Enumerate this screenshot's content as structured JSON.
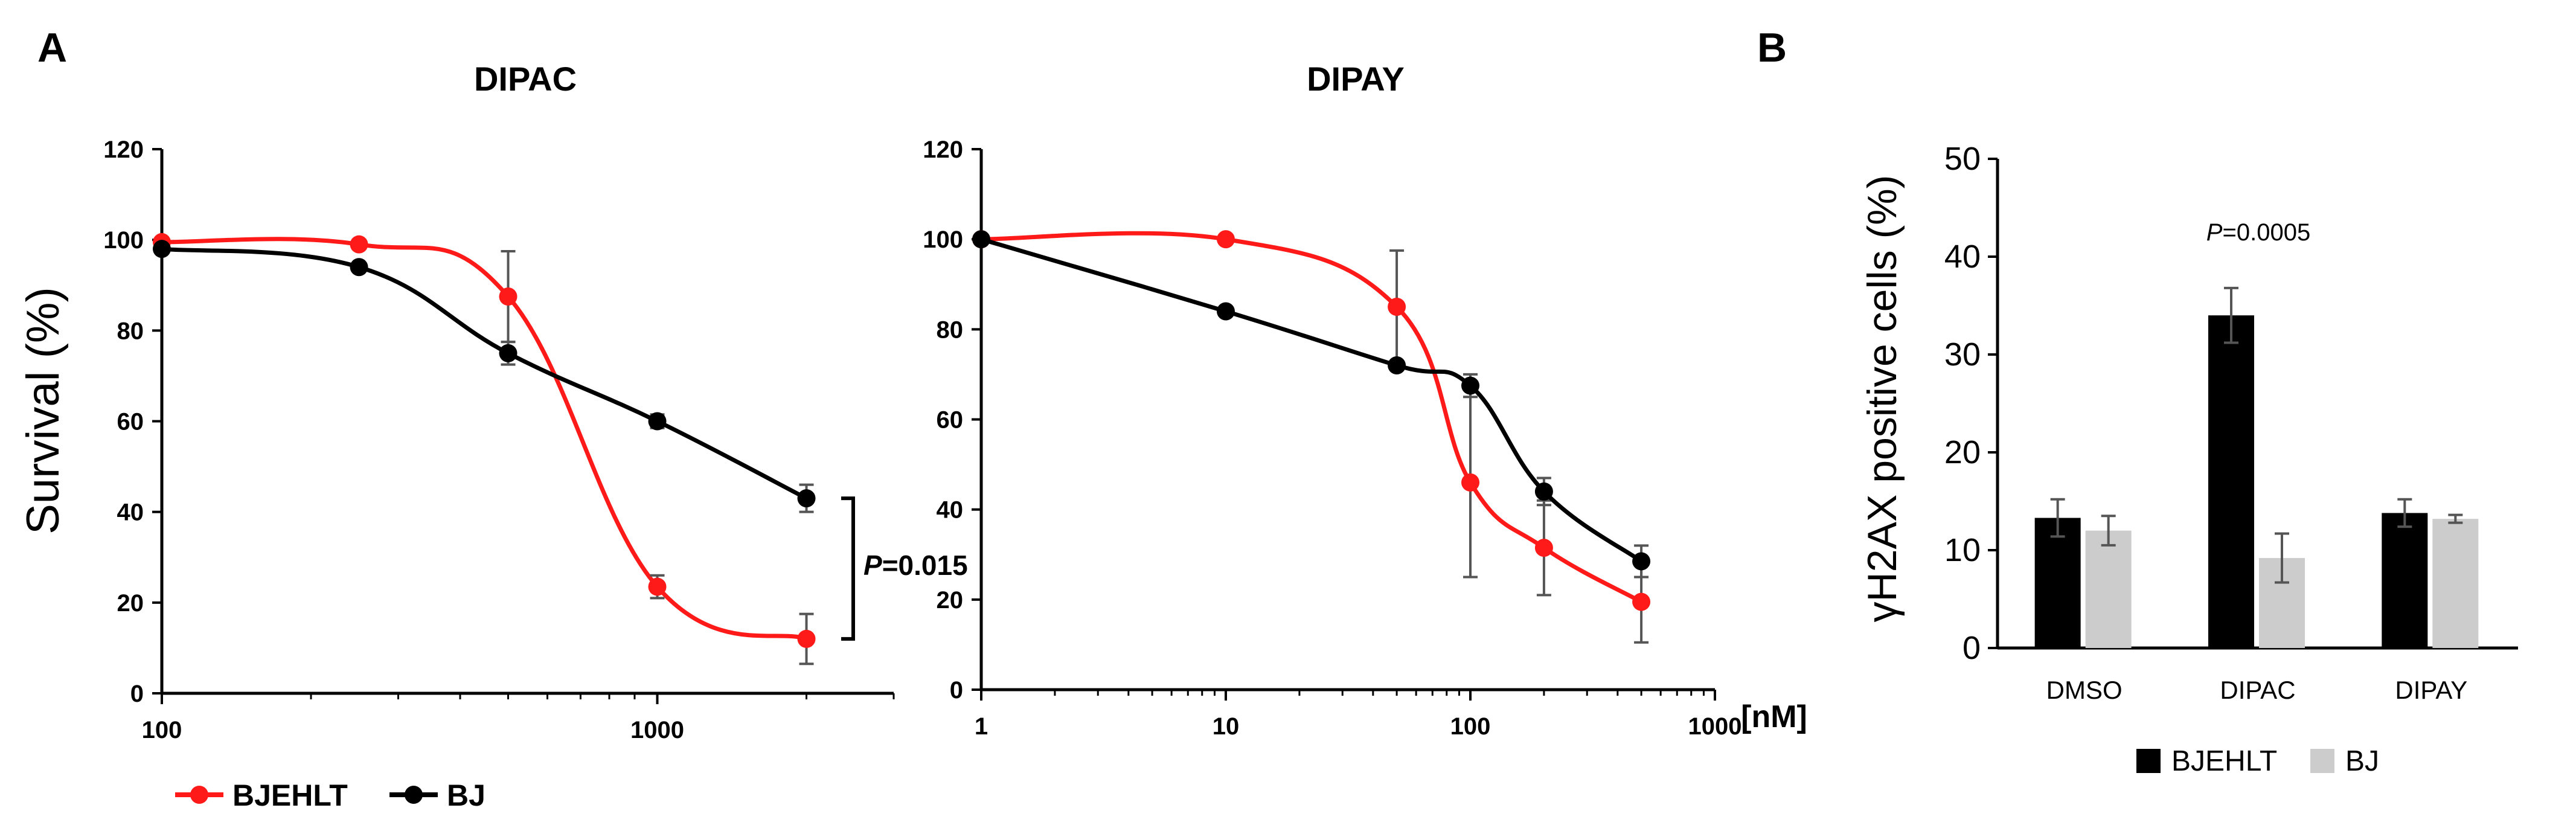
{
  "figure": {
    "panel_labels": [
      "A",
      "B"
    ],
    "unit_label": "[nM]"
  },
  "legend_a": {
    "items": [
      {
        "name": "BJEHLT",
        "color": "#ff1a1a"
      },
      {
        "name": "BJ",
        "color": "#000000"
      }
    ]
  },
  "legend_b": {
    "items": [
      {
        "name": "BJEHLT",
        "color": "#000000"
      },
      {
        "name": "BJ",
        "color": "#cccccc"
      }
    ]
  },
  "chart_data": [
    {
      "type": "line",
      "title": "DIPAC",
      "xlabel": "",
      "ylabel": "Survival (%)",
      "xscale": "log",
      "xlim": [
        100,
        3000
      ],
      "ylim": [
        0,
        120
      ],
      "xticks": [
        100,
        1000
      ],
      "xtick_labels": [
        "100",
        "1000"
      ],
      "yticks": [
        0,
        20,
        40,
        60,
        80,
        100,
        120
      ],
      "ytick_labels": [
        "0",
        "20",
        "40",
        "60",
        "80",
        "100",
        "120"
      ],
      "grid": false,
      "series": [
        {
          "name": "BJEHLT",
          "color": "#ff1a1a",
          "x": [
            100,
            250,
            500,
            1000,
            2000
          ],
          "y": [
            99.5,
            99,
            87.5,
            23.5,
            12
          ],
          "err": [
            0,
            1,
            10,
            2.5,
            5.5
          ]
        },
        {
          "name": "BJ",
          "color": "#000000",
          "x": [
            100,
            250,
            500,
            1000,
            2000
          ],
          "y": [
            98,
            94,
            75,
            60,
            43
          ],
          "err": [
            0,
            0,
            2.5,
            1.5,
            3
          ]
        }
      ],
      "annotation": {
        "p_italic": "P",
        "text": "=0.015"
      }
    },
    {
      "type": "line",
      "title": "DIPAY",
      "xlabel": "",
      "ylabel": "",
      "xscale": "log",
      "xlim": [
        1,
        1000
      ],
      "ylim": [
        0,
        120
      ],
      "xticks": [
        1,
        10,
        100,
        1000
      ],
      "xtick_labels": [
        "1",
        "10",
        "100",
        "1000"
      ],
      "yticks": [
        0,
        20,
        40,
        60,
        80,
        100,
        120
      ],
      "ytick_labels": [
        "0",
        "20",
        "40",
        "60",
        "80",
        "100",
        "120"
      ],
      "grid": false,
      "series": [
        {
          "name": "BJEHLT",
          "color": "#ff1a1a",
          "x": [
            1,
            10,
            50,
            100,
            200,
            500
          ],
          "y": [
            100,
            100,
            85,
            46,
            31.5,
            19.5
          ],
          "err": [
            0,
            0,
            12.5,
            21,
            10.5,
            9
          ]
        },
        {
          "name": "BJ",
          "color": "#000000",
          "x": [
            1,
            10,
            50,
            100,
            200,
            500
          ],
          "y": [
            100,
            84,
            72,
            67.5,
            44,
            28.5
          ],
          "err": [
            0,
            0,
            0,
            2.5,
            3,
            3.5
          ]
        }
      ]
    },
    {
      "type": "bar",
      "title": "",
      "xlabel": "",
      "ylabel": "γH2AX positive cells (%)",
      "ylim": [
        0,
        50
      ],
      "yticks": [
        0,
        10,
        20,
        30,
        40,
        50
      ],
      "ytick_labels": [
        "0",
        "10",
        "20",
        "30",
        "40",
        "50"
      ],
      "grid": false,
      "categories": [
        "DMSO",
        "DIPAC",
        "DIPAY"
      ],
      "series": [
        {
          "name": "BJEHLT",
          "color": "#000000",
          "values": [
            13.3,
            34.0,
            13.8
          ],
          "err": [
            1.9,
            2.8,
            1.4
          ]
        },
        {
          "name": "BJ",
          "color": "#cccccc",
          "values": [
            12.0,
            9.2,
            13.2
          ],
          "err": [
            1.5,
            2.5,
            0.4
          ]
        }
      ],
      "annotation": {
        "p_italic": "P",
        "text": "=0.0005"
      }
    }
  ]
}
